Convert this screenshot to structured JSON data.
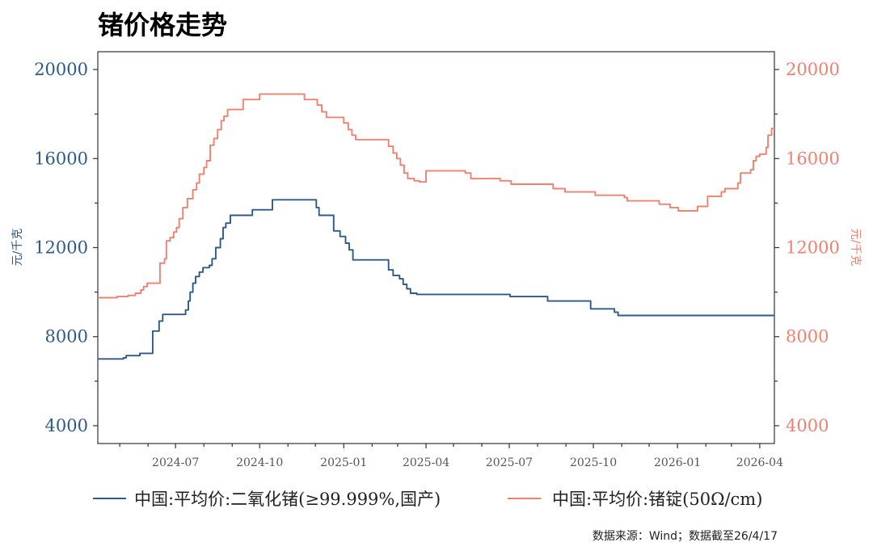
{
  "title": "锗价格走势",
  "source_note": "数据来源：Wind；数据截至26/4/17",
  "colors": {
    "left_series": "#2e5a87",
    "right_series": "#f08070",
    "axis": "#333333"
  },
  "chart_data": {
    "type": "line",
    "dual_axis": true,
    "ylabel_left": "元/千克",
    "ylabel_right": "元/千克",
    "ylim_left": [
      3200,
      20800
    ],
    "ylim_right": [
      3200,
      20800
    ],
    "yticks_left": [
      4000,
      8000,
      12000,
      16000,
      20000
    ],
    "yticks_right": [
      4000,
      8000,
      12000,
      16000,
      20000
    ],
    "x_range": [
      "2024-04-07",
      "2026-04-17"
    ],
    "x_ticks": [
      "2024-07",
      "2024-10",
      "2025-01",
      "2025-04",
      "2025-07",
      "2025-10",
      "2026-01",
      "2026-04"
    ],
    "grid": false,
    "legend_position": "bottom",
    "series": [
      {
        "name": "中国:平均价:二氧化锗(≥99.999%,国产)",
        "axis": "left",
        "step": true,
        "points": [
          [
            "2024-04-07",
            7000
          ],
          [
            "2024-05-01",
            7000
          ],
          [
            "2024-05-05",
            7050
          ],
          [
            "2024-05-08",
            7150
          ],
          [
            "2024-05-20",
            7150
          ],
          [
            "2024-05-23",
            7250
          ],
          [
            "2024-06-03",
            7250
          ],
          [
            "2024-06-06",
            8250
          ],
          [
            "2024-06-13",
            8700
          ],
          [
            "2024-06-17",
            9000
          ],
          [
            "2024-07-09",
            9000
          ],
          [
            "2024-07-12",
            9200
          ],
          [
            "2024-07-15",
            9600
          ],
          [
            "2024-07-17",
            10000
          ],
          [
            "2024-07-20",
            10400
          ],
          [
            "2024-07-23",
            10700
          ],
          [
            "2024-07-27",
            10900
          ],
          [
            "2024-07-31",
            11100
          ],
          [
            "2024-08-07",
            11200
          ],
          [
            "2024-08-10",
            11500
          ],
          [
            "2024-08-14",
            12000
          ],
          [
            "2024-08-19",
            12400
          ],
          [
            "2024-08-22",
            12900
          ],
          [
            "2024-08-25",
            13100
          ],
          [
            "2024-08-30",
            13450
          ],
          [
            "2024-09-20",
            13450
          ],
          [
            "2024-09-23",
            13700
          ],
          [
            "2024-10-11",
            13700
          ],
          [
            "2024-10-15",
            14150
          ],
          [
            "2024-11-30",
            14150
          ],
          [
            "2024-12-02",
            13800
          ],
          [
            "2024-12-05",
            13450
          ],
          [
            "2024-12-18",
            13450
          ],
          [
            "2024-12-21",
            12750
          ],
          [
            "2024-12-28",
            12500
          ],
          [
            "2025-01-03",
            12200
          ],
          [
            "2025-01-07",
            11900
          ],
          [
            "2025-01-11",
            11450
          ],
          [
            "2025-02-15",
            11450
          ],
          [
            "2025-02-19",
            11000
          ],
          [
            "2025-02-24",
            10750
          ],
          [
            "2025-03-03",
            10600
          ],
          [
            "2025-03-07",
            10350
          ],
          [
            "2025-03-11",
            10150
          ],
          [
            "2025-03-15",
            9950
          ],
          [
            "2025-03-22",
            9900
          ],
          [
            "2025-06-30",
            9900
          ],
          [
            "2025-07-02",
            9800
          ],
          [
            "2025-08-10",
            9800
          ],
          [
            "2025-08-12",
            9600
          ],
          [
            "2025-09-25",
            9600
          ],
          [
            "2025-09-28",
            9250
          ],
          [
            "2025-10-21",
            9250
          ],
          [
            "2025-10-24",
            9100
          ],
          [
            "2025-10-28",
            8950
          ],
          [
            "2026-04-17",
            8950
          ]
        ]
      },
      {
        "name": "中国:平均价:锗锭(50Ω/cm)",
        "axis": "right",
        "step": true,
        "points": [
          [
            "2024-04-07",
            9750
          ],
          [
            "2024-04-25",
            9750
          ],
          [
            "2024-04-28",
            9800
          ],
          [
            "2024-05-08",
            9800
          ],
          [
            "2024-05-10",
            9850
          ],
          [
            "2024-05-15",
            9850
          ],
          [
            "2024-05-18",
            9950
          ],
          [
            "2024-05-24",
            10100
          ],
          [
            "2024-05-27",
            10250
          ],
          [
            "2024-05-31",
            10400
          ],
          [
            "2024-06-11",
            10400
          ],
          [
            "2024-06-14",
            11300
          ],
          [
            "2024-06-19",
            11500
          ],
          [
            "2024-06-21",
            12300
          ],
          [
            "2024-06-25",
            12450
          ],
          [
            "2024-06-29",
            12700
          ],
          [
            "2024-07-02",
            12900
          ],
          [
            "2024-07-05",
            13300
          ],
          [
            "2024-07-09",
            13800
          ],
          [
            "2024-07-14",
            14200
          ],
          [
            "2024-07-20",
            14600
          ],
          [
            "2024-07-24",
            14900
          ],
          [
            "2024-07-27",
            15300
          ],
          [
            "2024-08-01",
            15600
          ],
          [
            "2024-08-04",
            15900
          ],
          [
            "2024-08-08",
            16600
          ],
          [
            "2024-08-12",
            16900
          ],
          [
            "2024-08-16",
            17300
          ],
          [
            "2024-08-20",
            17700
          ],
          [
            "2024-08-23",
            17900
          ],
          [
            "2024-08-27",
            18200
          ],
          [
            "2024-09-10",
            18200
          ],
          [
            "2024-09-13",
            18650
          ],
          [
            "2024-09-27",
            18650
          ],
          [
            "2024-10-01",
            18900
          ],
          [
            "2024-11-15",
            18900
          ],
          [
            "2024-11-19",
            18650
          ],
          [
            "2024-11-30",
            18650
          ],
          [
            "2024-12-03",
            18400
          ],
          [
            "2024-12-08",
            18100
          ],
          [
            "2024-12-13",
            17850
          ],
          [
            "2024-12-29",
            17850
          ],
          [
            "2025-01-01",
            17600
          ],
          [
            "2025-01-06",
            17300
          ],
          [
            "2025-01-10",
            17050
          ],
          [
            "2025-01-14",
            16850
          ],
          [
            "2025-02-15",
            16850
          ],
          [
            "2025-02-19",
            16550
          ],
          [
            "2025-02-24",
            16250
          ],
          [
            "2025-02-28",
            16000
          ],
          [
            "2025-03-04",
            15700
          ],
          [
            "2025-03-08",
            15350
          ],
          [
            "2025-03-12",
            15100
          ],
          [
            "2025-03-19",
            15000
          ],
          [
            "2025-03-25",
            14950
          ],
          [
            "2025-04-01",
            15450
          ],
          [
            "2025-05-10",
            15450
          ],
          [
            "2025-05-14",
            15350
          ],
          [
            "2025-05-20",
            15100
          ],
          [
            "2025-06-17",
            15100
          ],
          [
            "2025-06-21",
            15000
          ],
          [
            "2025-07-01",
            15000
          ],
          [
            "2025-07-03",
            14850
          ],
          [
            "2025-08-15",
            14850
          ],
          [
            "2025-08-18",
            14650
          ],
          [
            "2025-08-28",
            14650
          ],
          [
            "2025-08-31",
            14500
          ],
          [
            "2025-09-30",
            14500
          ],
          [
            "2025-10-03",
            14350
          ],
          [
            "2025-11-01",
            14350
          ],
          [
            "2025-11-04",
            14250
          ],
          [
            "2025-11-07",
            14100
          ],
          [
            "2025-12-09",
            14100
          ],
          [
            "2025-12-12",
            13950
          ],
          [
            "2025-12-24",
            13800
          ],
          [
            "2026-01-02",
            13650
          ],
          [
            "2026-01-20",
            13650
          ],
          [
            "2026-01-23",
            13850
          ],
          [
            "2026-02-03",
            14300
          ],
          [
            "2026-02-14",
            14300
          ],
          [
            "2026-02-18",
            14500
          ],
          [
            "2026-02-22",
            14650
          ],
          [
            "2026-03-05",
            14650
          ],
          [
            "2026-03-08",
            14900
          ],
          [
            "2026-03-11",
            15350
          ],
          [
            "2026-03-22",
            15500
          ],
          [
            "2026-03-25",
            15900
          ],
          [
            "2026-03-28",
            16100
          ],
          [
            "2026-04-01",
            16200
          ],
          [
            "2026-04-08",
            16500
          ],
          [
            "2026-04-10",
            17050
          ],
          [
            "2026-04-14",
            17350
          ],
          [
            "2026-04-17",
            17400
          ]
        ]
      }
    ]
  }
}
